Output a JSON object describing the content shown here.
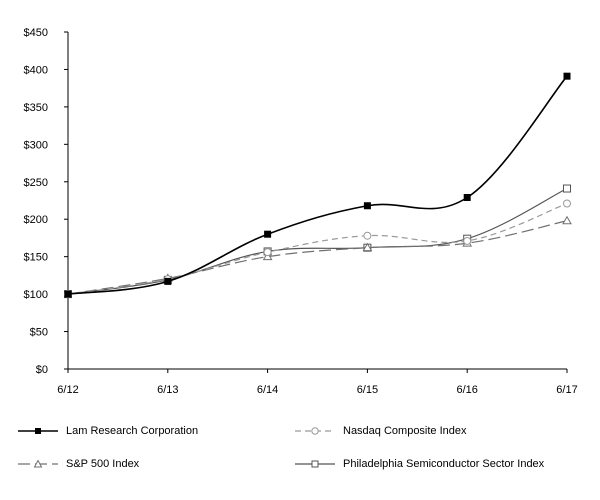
{
  "chart_data": {
    "type": "line",
    "categories": [
      "6/12",
      "6/13",
      "6/14",
      "6/15",
      "6/16",
      "6/17"
    ],
    "ylim": [
      0,
      450
    ],
    "yticks": [
      0,
      50,
      100,
      150,
      200,
      250,
      300,
      350,
      400,
      450
    ],
    "ytick_labels": [
      "$0",
      "$50",
      "$100",
      "$150",
      "$200",
      "$250",
      "$300",
      "$350",
      "$400",
      "$450"
    ],
    "series": [
      {
        "name": "Lam Research Corporation",
        "values": [
          100,
          117,
          180,
          218,
          229,
          391
        ],
        "color": "#000000",
        "marker": "filled-square",
        "dash": "solid"
      },
      {
        "name": "Nasdaq Composite Index",
        "values": [
          100,
          120,
          156,
          178,
          171,
          221
        ],
        "color": "#9a9a9a",
        "marker": "open-circle",
        "dash": "dashed"
      },
      {
        "name": "S&P 500 Index",
        "values": [
          100,
          121,
          150,
          162,
          168,
          198
        ],
        "color": "#707070",
        "marker": "open-triangle",
        "dash": "long-dash"
      },
      {
        "name": "Philadelphia Semiconductor Sector Index",
        "values": [
          100,
          119,
          157,
          162,
          174,
          241
        ],
        "color": "#555555",
        "marker": "open-square",
        "dash": "solid"
      }
    ]
  }
}
